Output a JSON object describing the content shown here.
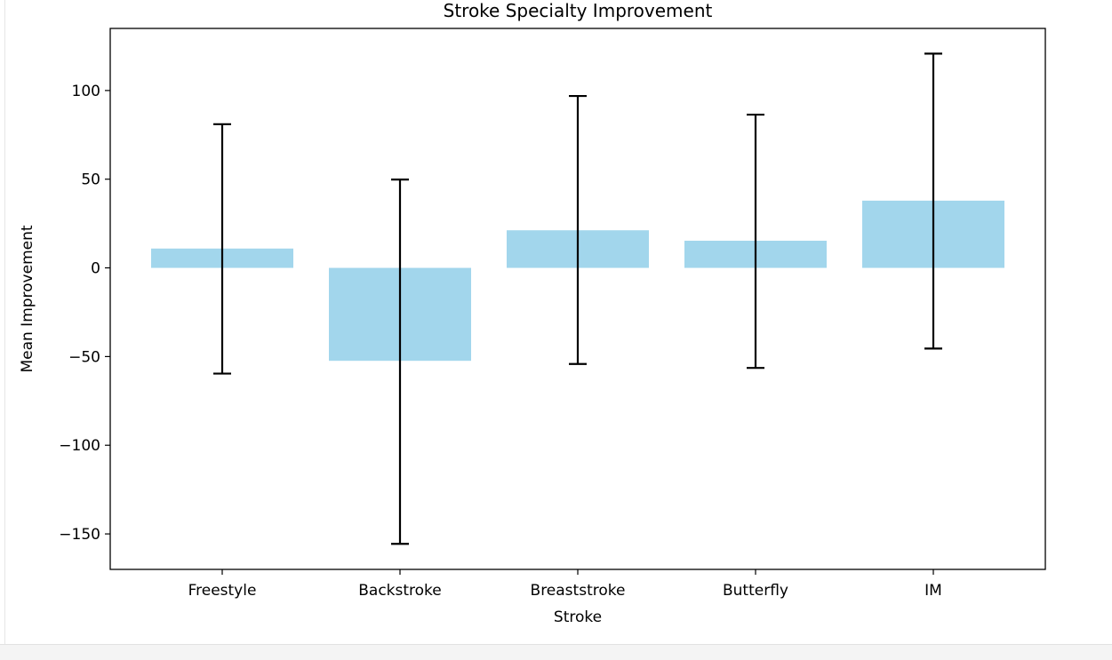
{
  "chart_data": {
    "type": "bar",
    "title": "Stroke Specialty Improvement",
    "xlabel": "Stroke",
    "ylabel": "Mean Improvement",
    "categories": [
      "Freestyle",
      "Backstroke",
      "Breaststroke",
      "Butterfly",
      "IM"
    ],
    "values": [
      10.9,
      -52.4,
      21.2,
      15.3,
      37.9
    ],
    "error_low": [
      -59.6,
      -155.6,
      -54.2,
      -56.4,
      -45.5
    ],
    "error_high": [
      81.0,
      49.8,
      96.9,
      86.4,
      120.8
    ],
    "ylim": [
      -170,
      135
    ],
    "yticks": [
      100,
      50,
      0,
      -50,
      -100,
      -150
    ],
    "ytick_labels": [
      "100",
      "50",
      "0",
      "−50",
      "−100",
      "−150"
    ],
    "grid": false,
    "legend": false,
    "colors": {
      "bar": "#a2d6ec",
      "error": "#000000",
      "axes": "#000000"
    }
  }
}
